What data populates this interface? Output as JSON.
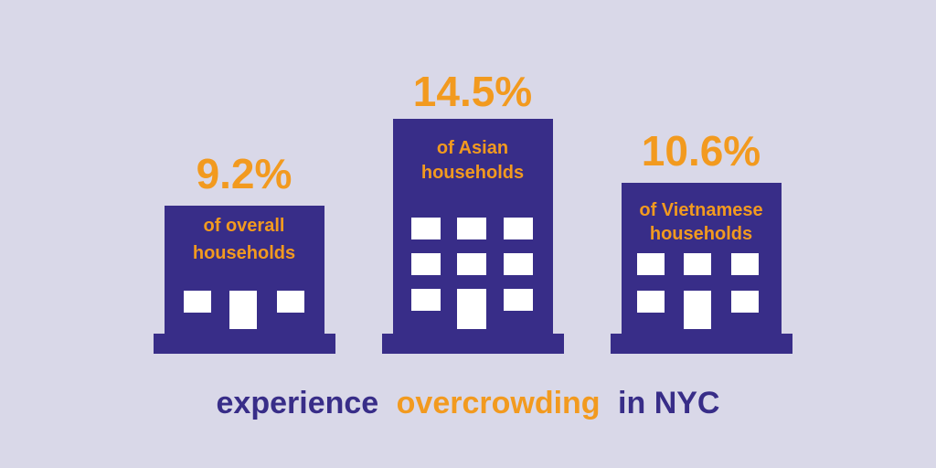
{
  "infographic": {
    "items": [
      {
        "value": "9.2%",
        "label_lines": [
          "of overall",
          "households"
        ]
      },
      {
        "value": "14.5%",
        "label_lines": [
          "of Asian",
          "households"
        ]
      },
      {
        "value": "10.6%",
        "label_lines": [
          "of Vietnamese",
          "households"
        ]
      }
    ],
    "caption": {
      "start": "experience",
      "highlight": "overcrowding",
      "end": "in NYC"
    }
  }
}
